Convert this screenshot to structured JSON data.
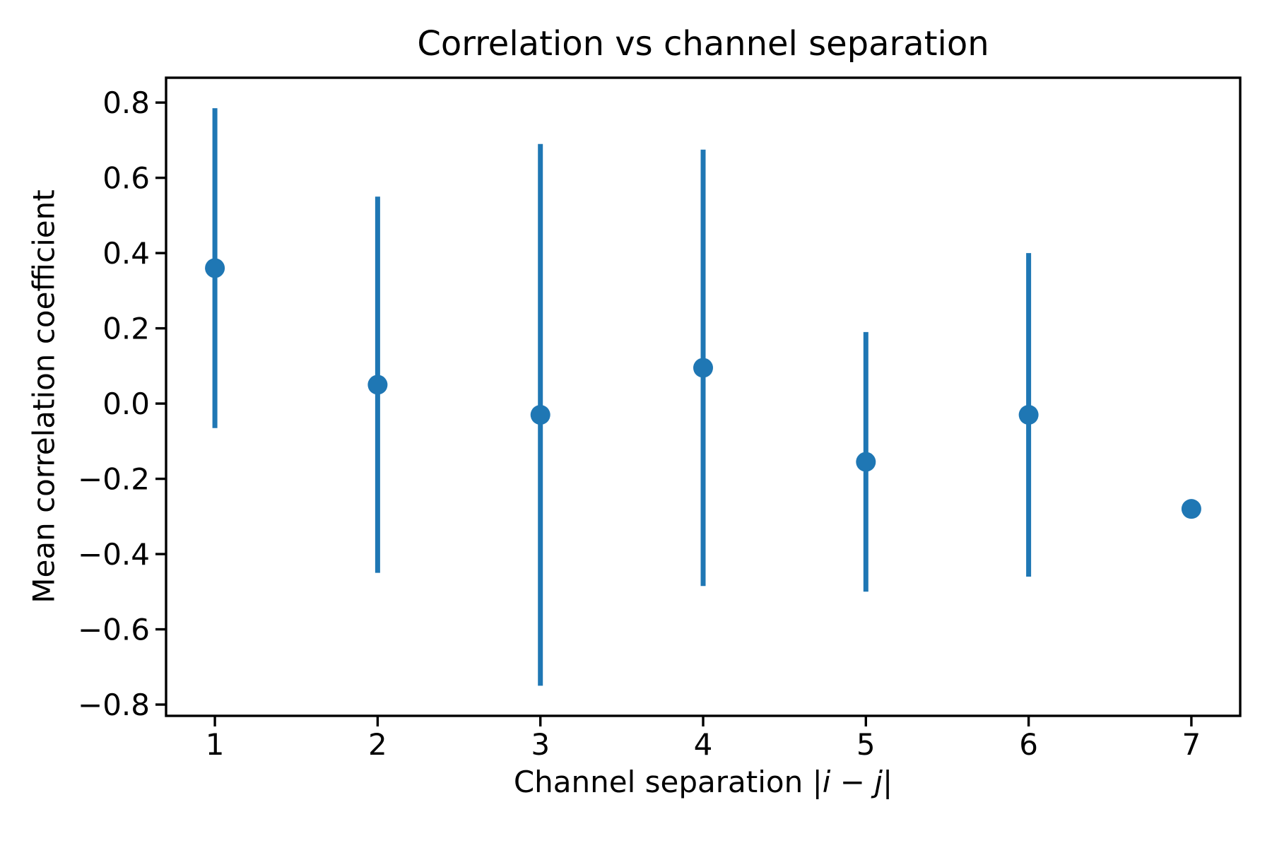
{
  "figure": {
    "title": "Correlation vs channel separation",
    "ylabel": "Mean correlation coefficient",
    "xlabel_parts": [
      {
        "text": "Channel separation |",
        "italic": false
      },
      {
        "text": "i",
        "italic": true
      },
      {
        "text": " − ",
        "italic": false
      },
      {
        "text": "j",
        "italic": true
      },
      {
        "text": "|",
        "italic": false
      }
    ]
  },
  "chart_data": {
    "type": "scatter",
    "subtype": "errorbar",
    "title": "Correlation vs channel separation",
    "xlabel": "Channel separation |i − j|",
    "ylabel": "Mean correlation coefficient",
    "x": [
      1,
      2,
      3,
      4,
      5,
      6,
      7
    ],
    "y": [
      0.36,
      0.05,
      -0.03,
      0.095,
      -0.155,
      -0.03,
      -0.28
    ],
    "yerr": [
      0.425,
      0.5,
      0.72,
      0.58,
      0.345,
      0.43,
      0.0
    ],
    "xlim": [
      0.7,
      7.3
    ],
    "ylim": [
      -0.83,
      0.866
    ],
    "xticks": {
      "values": [
        1,
        2,
        3,
        4,
        5,
        6,
        7
      ],
      "labels": [
        "1",
        "2",
        "3",
        "4",
        "5",
        "6",
        "7"
      ]
    },
    "yticks": {
      "values": [
        0.8,
        0.6,
        0.4,
        0.2,
        0.0,
        -0.2,
        -0.4,
        -0.6,
        -0.8
      ],
      "labels": [
        "0.8",
        "0.6",
        "0.4",
        "0.2",
        "0.0",
        "−0.2",
        "−0.4",
        "−0.6",
        "−0.8"
      ]
    },
    "grid": false,
    "legend": null,
    "marker": "o",
    "marker_color": "#1f77b4",
    "errorbar_color": "#1f77b4",
    "axis_color": "#000000",
    "background_color": "#ffffff"
  }
}
